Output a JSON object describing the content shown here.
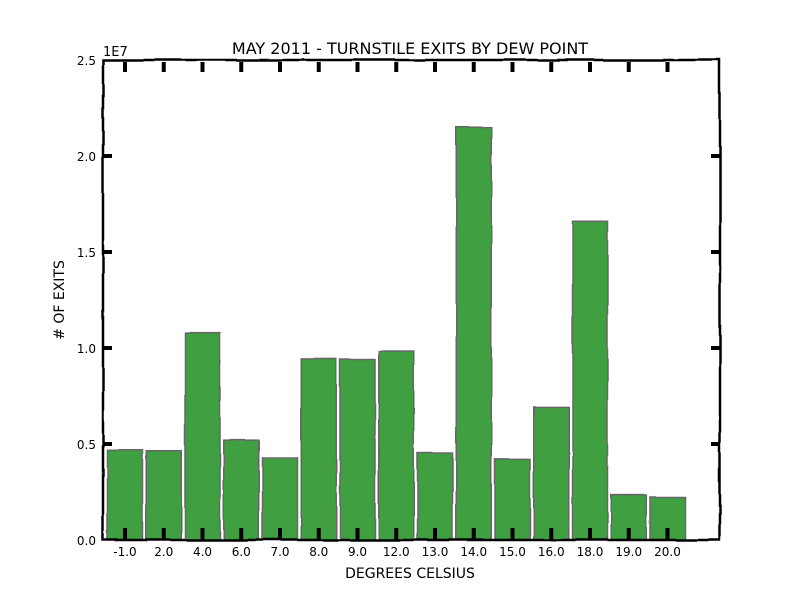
{
  "chart_data": {
    "type": "bar",
    "title": "MAY 2011 - TURNSTILE EXITS BY DEW POINT",
    "xlabel": "DEGREES CELSIUS",
    "ylabel": "# OF EXITS",
    "y_multiplier_label": "1E7",
    "categories": [
      "-1.0",
      "2.0",
      "4.0",
      "6.0",
      "7.0",
      "8.0",
      "9.0",
      "12.0",
      "13.0",
      "14.0",
      "15.0",
      "16.0",
      "18.0",
      "19.0",
      "20.0"
    ],
    "values": [
      4700000,
      4650000,
      10800000,
      5200000,
      4270000,
      9430000,
      9400000,
      9840000,
      4530000,
      21500000,
      4200000,
      6930000,
      16600000,
      2340000,
      2240000
    ],
    "ylim": [
      0,
      25000000
    ],
    "ytick_values": [
      0,
      5000000,
      10000000,
      15000000,
      20000000,
      25000000
    ],
    "ytick_labels": [
      "0.0",
      "0.5",
      "1.0",
      "1.5",
      "2.0",
      "2.5"
    ],
    "grid": false,
    "bar_color": "#3f9f3f",
    "bar_edge_color": "#666666",
    "style": "xkcd"
  }
}
